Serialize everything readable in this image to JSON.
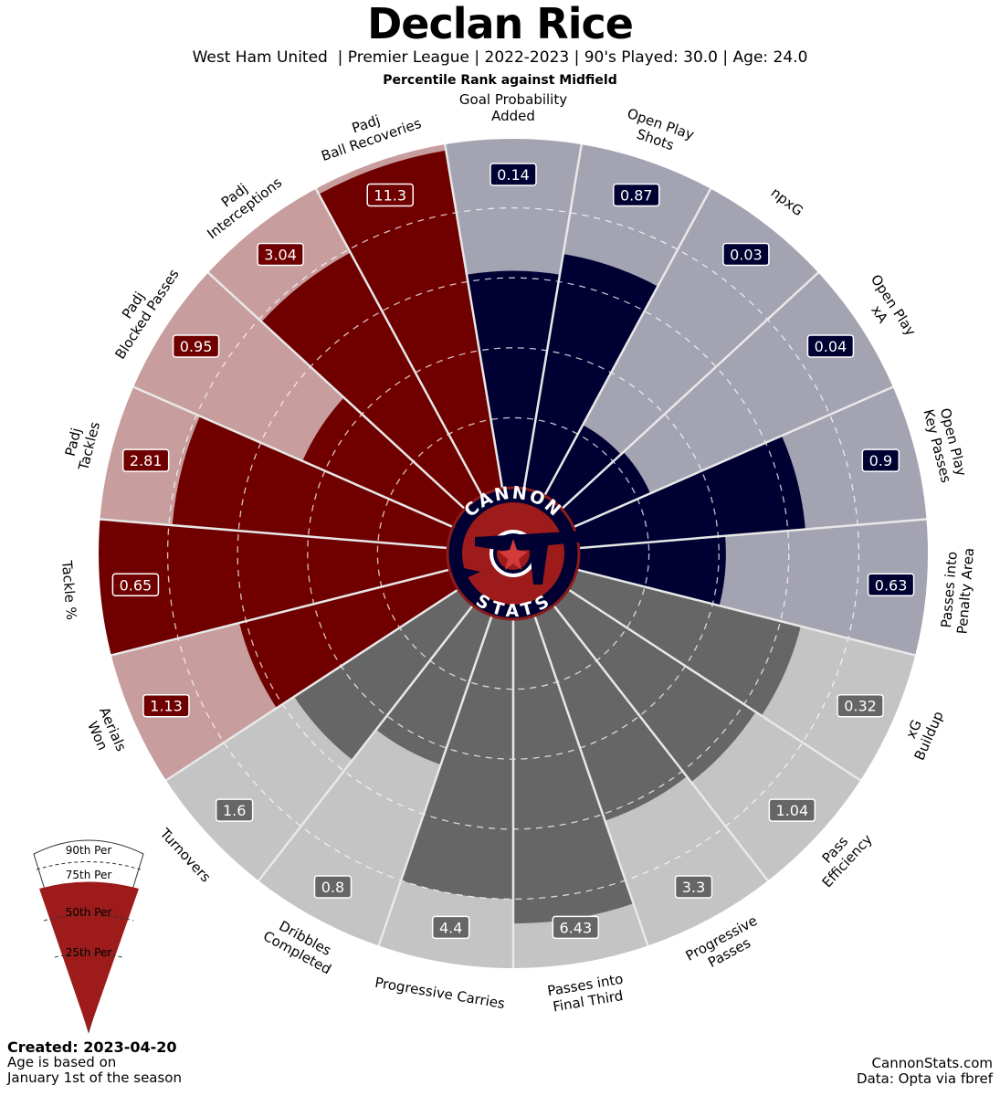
{
  "header": {
    "title": "Declan Rice",
    "subtitle": "West Ham United  | Premier League | 2022-2023 | 90's Played: 30.0 | Age: 24.0",
    "comparison": "Percentile Rank against Midfield"
  },
  "logo": {
    "top_text": "CANNON",
    "bottom_text": "STATS"
  },
  "legend": {
    "labels": [
      "90th Per",
      "75th Per",
      "50th Per",
      "25th Per"
    ]
  },
  "footer": {
    "created": "Created: 2023-04-20",
    "age_note_1": "Age is based on",
    "age_note_2": "January 1st of the season",
    "site": "CannonStats.com",
    "source": "Data: Opta via fbref"
  },
  "colors": {
    "attack_dark": "#000033",
    "attack_light": "#a3a3b2",
    "possession_dark": "#666666",
    "possession_light": "#c4c4c4",
    "defense_dark": "#700000",
    "defense_light": "#c79d9d",
    "legend_red": "#9e1b1b"
  },
  "chart_data": {
    "type": "pizza",
    "rlim": [
      0,
      100
    ],
    "groups": [
      "attack",
      "possession",
      "defense"
    ],
    "params": [
      {
        "label": "Goal Probability\nAdded",
        "value": "0.14",
        "percentile": 62,
        "group": "attack"
      },
      {
        "label": "Open Play\nShots",
        "value": "0.87",
        "percentile": 68,
        "group": "attack"
      },
      {
        "label": "npxG",
        "value": "0.03",
        "percentile": 23,
        "group": "attack"
      },
      {
        "label": "Open Play\nxA",
        "value": "0.04",
        "percentile": 24,
        "group": "attack"
      },
      {
        "label": "Open Play\nKey Passes",
        "value": "0.9",
        "percentile": 65,
        "group": "attack"
      },
      {
        "label": "Passes into\nPenalty Area",
        "value": "0.63",
        "percentile": 42,
        "group": "attack"
      },
      {
        "label": "xG\nBuildup",
        "value": "0.32",
        "percentile": 66,
        "group": "possession"
      },
      {
        "label": "Pass\nEfficiency",
        "value": "1.04",
        "percentile": 64,
        "group": "possession"
      },
      {
        "label": "Progressive\nPasses",
        "value": "3.3",
        "percentile": 62,
        "group": "possession"
      },
      {
        "label": "Passes into\nFinal Third",
        "value": "6.43",
        "percentile": 87,
        "group": "possession"
      },
      {
        "label": "Progressive Carries",
        "value": "4.4",
        "percentile": 80,
        "group": "possession"
      },
      {
        "label": "Dribbles\nCompleted",
        "value": "0.8",
        "percentile": 45,
        "group": "possession"
      },
      {
        "label": "Turnovers",
        "value": "1.6",
        "percentile": 56,
        "group": "possession"
      },
      {
        "label": "Aerials\nWon",
        "value": "1.13",
        "percentile": 62,
        "group": "defense"
      },
      {
        "label": "Tackle %",
        "value": "0.65",
        "percentile": 100,
        "group": "defense"
      },
      {
        "label": "Padj\nTackles",
        "value": "2.81",
        "percentile": 79,
        "group": "defense"
      },
      {
        "label": "Padj\nBlocked Passes",
        "value": "0.95",
        "percentile": 47,
        "group": "defense"
      },
      {
        "label": "Padj\nInterceptions",
        "value": "3.04",
        "percentile": 79,
        "group": "defense"
      },
      {
        "label": "Padj\nBall Recoveries",
        "value": "11.3",
        "percentile": 98,
        "group": "defense"
      }
    ]
  }
}
